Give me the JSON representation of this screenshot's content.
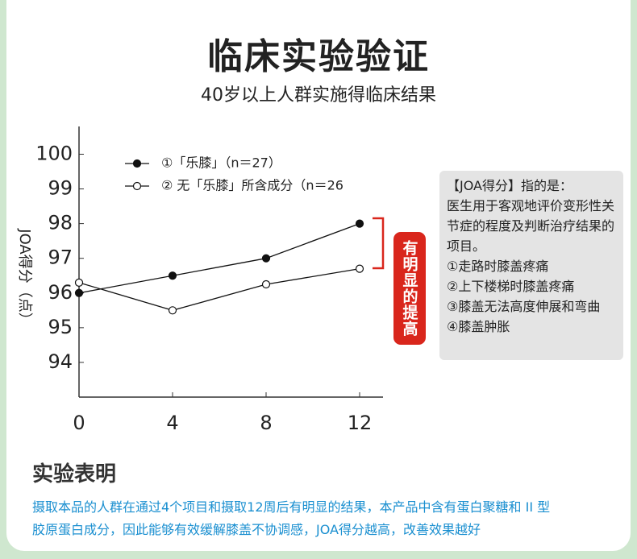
{
  "header": {
    "title": "临床实验验证",
    "subtitle": "40岁以上人群实施得临床结果"
  },
  "chart_data": {
    "type": "line",
    "y_label": "JOA得分（点）",
    "x": [
      0,
      4,
      8,
      12
    ],
    "xlim": [
      0,
      13
    ],
    "xticks": [
      0,
      4,
      8,
      12
    ],
    "ylim": [
      93,
      100.8
    ],
    "yticks": [
      94,
      95,
      96,
      97,
      98,
      99,
      100
    ],
    "series": [
      {
        "name": "①「乐膝」（n＝27）",
        "color": "#111111",
        "marker": "filled",
        "values": [
          96.0,
          96.5,
          97.0,
          98.0
        ]
      },
      {
        "name": "② 无「乐膝」所含成分（n＝26",
        "color": "#111111",
        "marker": "hollow",
        "values": [
          96.3,
          95.5,
          96.25,
          96.7
        ]
      }
    ],
    "annotation": "有明显的提高",
    "annotation_color": "#d9261c"
  },
  "info": {
    "title": "【JOA得分】指的是：",
    "lines": [
      "医生用于客观地评价变形性关节症的程度及判断治疗结果的项目。",
      "①走路时膝盖疼痛",
      "②上下楼梯时膝盖疼痛",
      "③膝盖无法高度伸展和弯曲",
      "④膝盖肿胀"
    ]
  },
  "conclusion": {
    "title": "实验表明",
    "lines": [
      "摄取本品的人群在通过4个项目和摄取12周后有明显的结果，本产品中含有蛋白聚糖和 II 型",
      "胶原蛋白成分，因此能够有效缓解膝盖不协调感，JOA得分越高，改善效果越好"
    ]
  }
}
